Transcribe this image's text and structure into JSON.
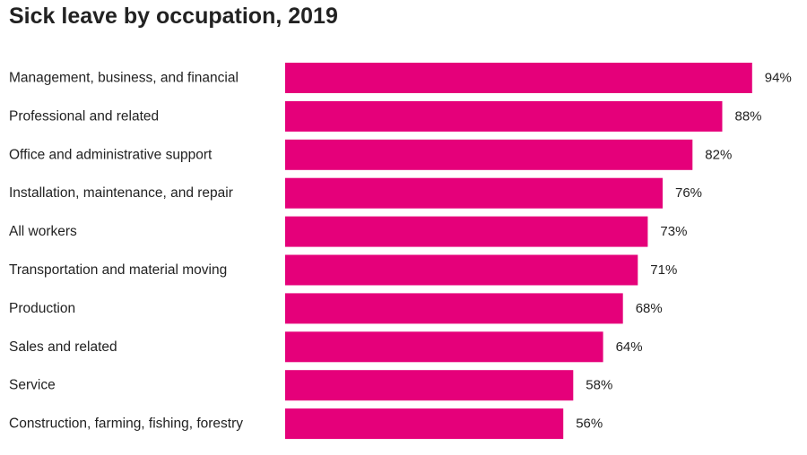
{
  "chart_data": {
    "type": "bar",
    "orientation": "horizontal",
    "title": "Sick leave by occupation, 2019",
    "xlabel": "",
    "ylabel": "",
    "grid": false,
    "unit_suffix": "%",
    "bar_color": "#e5007a",
    "xlim": [
      0,
      100
    ],
    "categories": [
      "Management, business, and financial",
      "Professional and related",
      "Office and administrative support",
      "Installation, maintenance, and repair",
      "All workers",
      "Transportation and material moving",
      "Production",
      "Sales and related",
      "Service",
      "Construction, farming, fishing, forestry"
    ],
    "values": [
      94,
      88,
      82,
      76,
      73,
      71,
      68,
      64,
      58,
      56
    ],
    "data_labels": [
      "94%",
      "88%",
      "82%",
      "76%",
      "73%",
      "71%",
      "68%",
      "64%",
      "58%",
      "56%"
    ]
  }
}
